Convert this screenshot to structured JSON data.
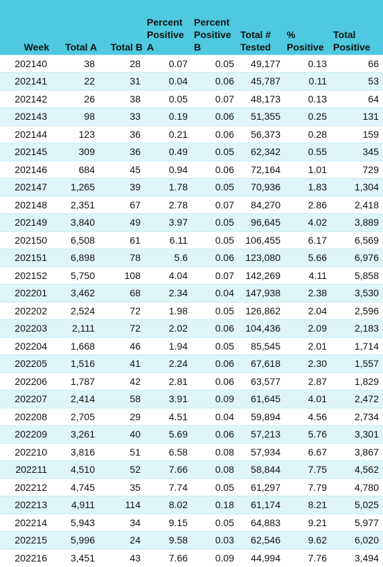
{
  "table": {
    "columns": [
      "Week",
      "Total A",
      "Total B",
      "Percent Positive A",
      "Percent Positive B",
      "Total # Tested",
      "% Positive",
      "Total Positive"
    ],
    "rows": [
      [
        "202140",
        "38",
        "28",
        "0.07",
        "0.05",
        "49,177",
        "0.13",
        "66"
      ],
      [
        "202141",
        "22",
        "31",
        "0.04",
        "0.06",
        "45,787",
        "0.11",
        "53"
      ],
      [
        "202142",
        "26",
        "38",
        "0.05",
        "0.07",
        "48,173",
        "0.13",
        "64"
      ],
      [
        "202143",
        "98",
        "33",
        "0.19",
        "0.06",
        "51,355",
        "0.25",
        "131"
      ],
      [
        "202144",
        "123",
        "36",
        "0.21",
        "0.06",
        "56,373",
        "0.28",
        "159"
      ],
      [
        "202145",
        "309",
        "36",
        "0.49",
        "0.05",
        "62,342",
        "0.55",
        "345"
      ],
      [
        "202146",
        "684",
        "45",
        "0.94",
        "0.06",
        "72,164",
        "1.01",
        "729"
      ],
      [
        "202147",
        "1,265",
        "39",
        "1.78",
        "0.05",
        "70,936",
        "1.83",
        "1,304"
      ],
      [
        "202148",
        "2,351",
        "67",
        "2.78",
        "0.07",
        "84,270",
        "2.86",
        "2,418"
      ],
      [
        "202149",
        "3,840",
        "49",
        "3.97",
        "0.05",
        "96,645",
        "4.02",
        "3,889"
      ],
      [
        "202150",
        "6,508",
        "61",
        "6.11",
        "0.05",
        "106,455",
        "6.17",
        "6,569"
      ],
      [
        "202151",
        "6,898",
        "78",
        "5.6",
        "0.06",
        "123,080",
        "5.66",
        "6,976"
      ],
      [
        "202152",
        "5,750",
        "108",
        "4.04",
        "0.07",
        "142,269",
        "4.11",
        "5,858"
      ],
      [
        "202201",
        "3,462",
        "68",
        "2.34",
        "0.04",
        "147,938",
        "2.38",
        "3,530"
      ],
      [
        "202202",
        "2,524",
        "72",
        "1.98",
        "0.05",
        "126,862",
        "2.04",
        "2,596"
      ],
      [
        "202203",
        "2,111",
        "72",
        "2.02",
        "0.06",
        "104,436",
        "2.09",
        "2,183"
      ],
      [
        "202204",
        "1,668",
        "46",
        "1.94",
        "0.05",
        "85,545",
        "2.01",
        "1,714"
      ],
      [
        "202205",
        "1,516",
        "41",
        "2.24",
        "0.06",
        "67,618",
        "2.30",
        "1,557"
      ],
      [
        "202206",
        "1,787",
        "42",
        "2.81",
        "0.06",
        "63,577",
        "2.87",
        "1,829"
      ],
      [
        "202207",
        "2,414",
        "58",
        "3.91",
        "0.09",
        "61,645",
        "4.01",
        "2,472"
      ],
      [
        "202208",
        "2,705",
        "29",
        "4.51",
        "0.04",
        "59,894",
        "4.56",
        "2,734"
      ],
      [
        "202209",
        "3,261",
        "40",
        "5.69",
        "0.06",
        "57,213",
        "5.76",
        "3,301"
      ],
      [
        "202210",
        "3,816",
        "51",
        "6.58",
        "0.08",
        "57,934",
        "6.67",
        "3,867"
      ],
      [
        "202211",
        "4,510",
        "52",
        "7.66",
        "0.08",
        "58,844",
        "7.75",
        "4,562"
      ],
      [
        "202212",
        "4,745",
        "35",
        "7.74",
        "0.05",
        "61,297",
        "7.79",
        "4,780"
      ],
      [
        "202213",
        "4,911",
        "114",
        "8.02",
        "0.18",
        "61,174",
        "8.21",
        "5,025"
      ],
      [
        "202214",
        "5,943",
        "34",
        "9.15",
        "0.05",
        "64,883",
        "9.21",
        "5,977"
      ],
      [
        "202215",
        "5,996",
        "24",
        "9.58",
        "0.03",
        "62,546",
        "9.62",
        "6,020"
      ],
      [
        "202216",
        "3,451",
        "43",
        "7.66",
        "0.09",
        "44,994",
        "7.76",
        "3,494"
      ]
    ]
  },
  "colors": {
    "header_bg": "#4ec9e0",
    "row_alt_bg": "#def5f9",
    "row_bg": "#ffffff"
  }
}
